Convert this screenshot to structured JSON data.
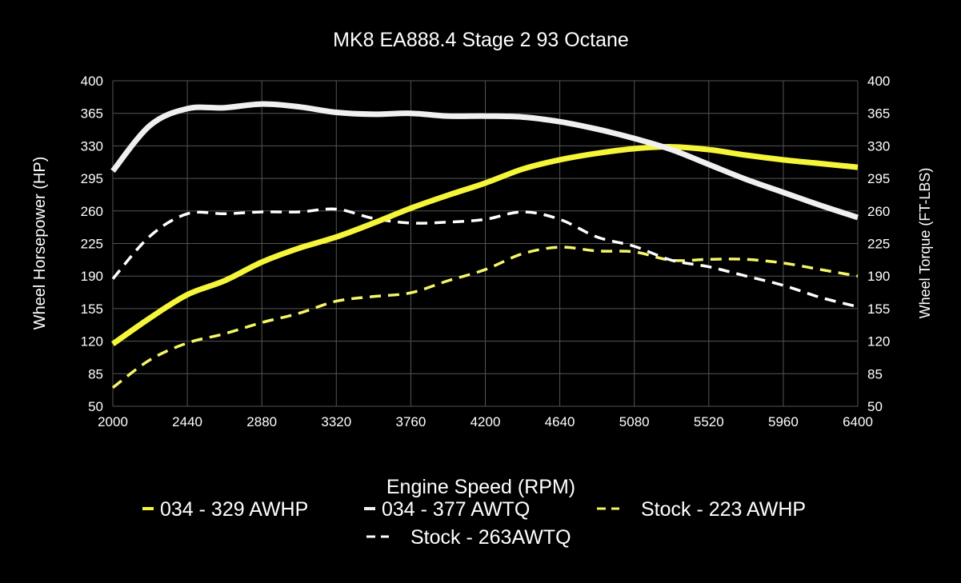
{
  "chart_data": {
    "type": "line",
    "title": "MK8 EA888.4 Stage 2 93 Octane",
    "xlabel": "Engine Speed (RPM)",
    "ylabel": "Wheel Horsepower (HP)",
    "ylabel_right": "Wheel Torque (FT-LBS)",
    "xlim": [
      2000,
      6400
    ],
    "ylim": [
      50,
      400
    ],
    "ylim_right": [
      50,
      400
    ],
    "xticks": [
      2000,
      2440,
      2880,
      3320,
      3760,
      4200,
      4640,
      5080,
      5520,
      5960,
      6400
    ],
    "yticks": [
      50,
      85,
      120,
      155,
      190,
      225,
      260,
      295,
      330,
      365,
      400
    ],
    "grid": true,
    "legend_position": "bottom",
    "background": "#000000",
    "x": [
      2000,
      2220,
      2440,
      2660,
      2880,
      3100,
      3320,
      3540,
      3760,
      3980,
      4200,
      4420,
      4640,
      4860,
      5080,
      5300,
      5520,
      5740,
      5960,
      6180,
      6400
    ],
    "series": [
      {
        "name": "034 - 329 AWHP",
        "color": "#f5f53a",
        "style": "solid",
        "values": [
          117,
          145,
          170,
          185,
          205,
          220,
          232,
          247,
          263,
          277,
          290,
          305,
          315,
          322,
          327,
          329,
          326,
          320,
          315,
          311,
          307
        ]
      },
      {
        "name": "034 - 377 AWTQ",
        "color": "#f0f0f0",
        "style": "solid",
        "values": [
          303,
          352,
          370,
          371,
          375,
          372,
          366,
          364,
          365,
          362,
          362,
          361,
          356,
          348,
          338,
          326,
          310,
          294,
          280,
          266,
          253
        ]
      },
      {
        "name": "Stock - 223 AWHP",
        "color": "#f5f56a",
        "style": "dashed",
        "values": [
          70,
          100,
          118,
          128,
          140,
          150,
          163,
          168,
          172,
          185,
          197,
          214,
          221,
          217,
          216,
          207,
          208,
          208,
          204,
          197,
          190
        ]
      },
      {
        "name": "Stock - 263AWTQ",
        "color": "#ffffff",
        "style": "dashed",
        "values": [
          187,
          233,
          257,
          257,
          259,
          259,
          262,
          252,
          247,
          248,
          251,
          259,
          251,
          232,
          222,
          207,
          200,
          190,
          180,
          167,
          157
        ]
      }
    ]
  }
}
